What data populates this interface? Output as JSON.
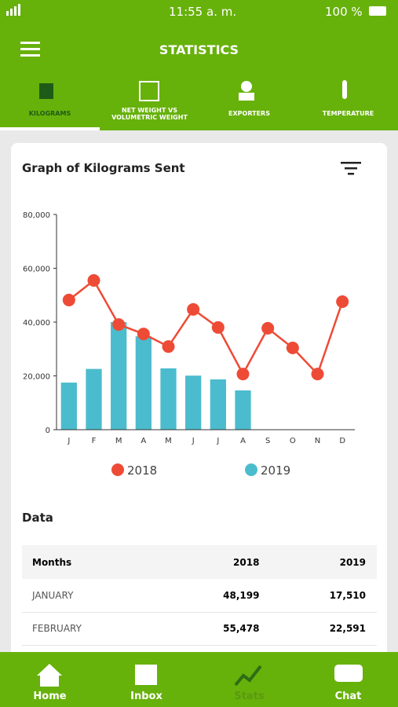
{
  "status_bar": {
    "time": "11:55 a. m.",
    "battery": "100 %"
  },
  "header": {
    "title": "STATISTICS"
  },
  "tabs": [
    "KILOGRAMS",
    "NET WEIGHT VS",
    "VOLUMETRIC WEIGHT",
    "EXPORTERS",
    "TEMPERATURE"
  ],
  "chart_data": {
    "type": "line_bar",
    "title": "Graph of Kilograms Sent",
    "categories": [
      "J",
      "F",
      "M",
      "A",
      "M",
      "J",
      "J",
      "A",
      "S",
      "O",
      "N",
      "D"
    ],
    "series": [
      {
        "name": "2018",
        "type": "line",
        "color": "#ee4b36",
        "values": [
          48199,
          55478,
          39100,
          35600,
          30900,
          44700,
          38000,
          20700,
          37700,
          30400,
          20700,
          47600
        ]
      },
      {
        "name": "2019",
        "type": "bar",
        "color": "#4bbccd",
        "values": [
          17510,
          22591,
          40000,
          34700,
          22800,
          20100,
          18700,
          14600,
          null,
          null,
          null,
          null
        ]
      }
    ],
    "ylim": [
      0,
      80000
    ],
    "yticks": [
      0,
      {
        "value": 20000,
        "label": "20,000"
      },
      {
        "value": 40000,
        "label": "40,000"
      },
      {
        "value": 60000,
        "label": "60,000"
      },
      {
        "value": 80000,
        "label": "80,000"
      }
    ]
  },
  "data_section": {
    "title": "Data",
    "table": {
      "header": [
        "Months",
        "2018",
        "2019"
      ],
      "rows": [
        [
          "JANUARY",
          "48,199",
          "17,510"
        ],
        [
          "FEBRUARY",
          "55,478",
          "22,591"
        ]
      ]
    }
  },
  "nav": [
    "Home",
    "Inbox",
    "Stats",
    "Chat"
  ]
}
